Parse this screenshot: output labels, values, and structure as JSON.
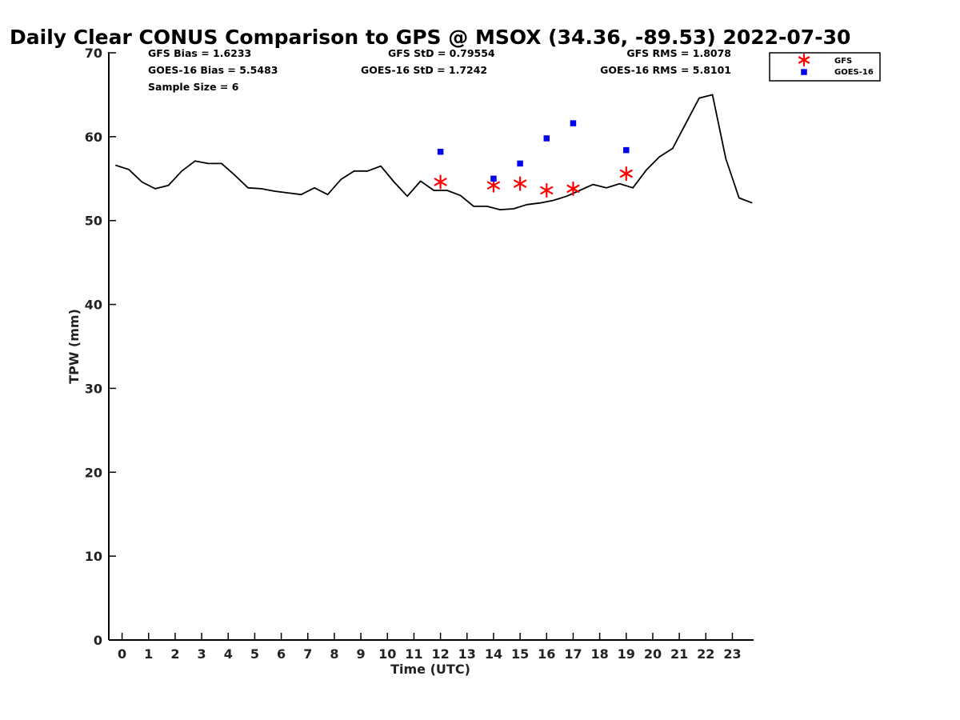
{
  "chart_data": {
    "type": "line+scatter",
    "title": "Daily Clear CONUS Comparison to GPS @ MSOX (34.36, -89.53) 2022-07-30",
    "xlabel": "Time (UTC)",
    "ylabel": "TPW (mm)",
    "xlim": [
      -0.5,
      23.8
    ],
    "ylim": [
      0,
      70
    ],
    "x_ticks": [
      0,
      1,
      2,
      3,
      4,
      5,
      6,
      7,
      8,
      9,
      10,
      11,
      12,
      13,
      14,
      15,
      16,
      17,
      18,
      19,
      20,
      21,
      22,
      23
    ],
    "y_ticks": [
      0,
      10,
      20,
      30,
      40,
      50,
      60,
      70
    ],
    "grid": false,
    "legend_position": "top-right outside",
    "stats": {
      "gfs_bias": "GFS Bias = 1.6233",
      "goes_bias": "GOES-16 Bias = 5.5483",
      "sample_size": "Sample Size = 6",
      "gfs_std": "GFS StD = 0.79554",
      "goes_std": "GOES-16 StD = 1.7242",
      "gfs_rms": "GFS RMS = 1.8078",
      "goes_rms": "GOES-16 RMS = 5.8101"
    },
    "series": [
      {
        "name": "GPS",
        "kind": "line",
        "color": "#000000",
        "x": [
          -0.25,
          0.25,
          0.75,
          1.25,
          1.75,
          2.25,
          2.75,
          3.25,
          3.75,
          4.25,
          4.75,
          5.25,
          5.75,
          6.25,
          6.75,
          7.25,
          7.75,
          8.25,
          8.75,
          9.25,
          9.75,
          10.25,
          10.75,
          11.25,
          11.75,
          12.25,
          12.75,
          13.25,
          13.75,
          14.25,
          14.75,
          15.25,
          15.75,
          16.25,
          16.75,
          17.25,
          17.75,
          18.25,
          18.75,
          19.25,
          19.75,
          20.25,
          20.75,
          21.25,
          21.75,
          22.25,
          22.75,
          23.25,
          23.75
        ],
        "y": [
          56.6,
          56.1,
          54.6,
          53.8,
          54.2,
          55.9,
          57.1,
          56.8,
          56.8,
          55.4,
          53.9,
          53.8,
          53.5,
          53.3,
          53.1,
          53.9,
          53.1,
          54.9,
          55.9,
          55.9,
          56.5,
          54.6,
          52.9,
          54.7,
          53.6,
          53.6,
          53.0,
          51.7,
          51.7,
          51.3,
          51.4,
          51.9,
          52.1,
          52.4,
          52.9,
          53.6,
          54.3,
          53.9,
          54.4,
          53.9,
          56.0,
          57.6,
          58.6,
          61.6,
          64.6,
          65.0,
          57.4,
          52.7,
          52.1
        ]
      },
      {
        "name": "GFS",
        "kind": "scatter",
        "marker": "asterisk",
        "color": "#ff0000",
        "x": [
          12,
          14,
          15,
          16,
          17,
          19
        ],
        "y": [
          54.6,
          54.2,
          54.4,
          53.6,
          53.8,
          55.6
        ]
      },
      {
        "name": "GOES-16",
        "kind": "scatter",
        "marker": "square",
        "color": "#0000ee",
        "x": [
          12,
          14,
          15,
          16,
          17,
          19
        ],
        "y": [
          58.2,
          55.0,
          56.8,
          59.8,
          61.6,
          58.4
        ]
      }
    ],
    "legend": [
      {
        "label": "GFS",
        "marker": "asterisk",
        "color": "#ff0000"
      },
      {
        "label": "GOES-16",
        "marker": "square",
        "color": "#0000ee"
      }
    ]
  }
}
